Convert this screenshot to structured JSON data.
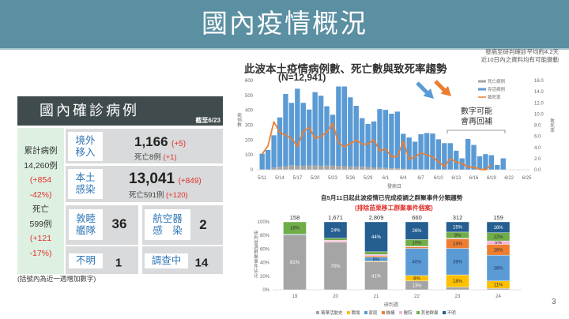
{
  "header": {
    "title": "國內疫情概況"
  },
  "summary_panel": {
    "title": "國內確診病例",
    "as_of": "截至6/23",
    "cumulative": {
      "label": "累計病例",
      "value": "14,260例",
      "change_line1": "(+854",
      "change_line2": "-42%)",
      "death_label": "死亡",
      "death_value": "599例",
      "death_change_line1": "(+121",
      "death_change_line2": "-17%)"
    },
    "imported": {
      "label_line1": "境外",
      "label_line2": "移入",
      "value": "1,166",
      "change": "(+5)",
      "death_text": "死亡8例",
      "death_change": "(+1)"
    },
    "local": {
      "label_line1": "本土",
      "label_line2": "感染",
      "value": "13,041",
      "change": "(+849)",
      "death_text": "死亡591例",
      "death_change": "(+120)"
    },
    "fleet": {
      "label_line1": "敦睦",
      "label_line2": "艦隊",
      "value": "36"
    },
    "aircraft": {
      "label_line1": "航空器",
      "label_line2": "感　染",
      "value": "2"
    },
    "unknown": {
      "label": "不明",
      "value": "1"
    },
    "investigating": {
      "label": "調查中",
      "value": "14"
    },
    "footnote": "(括號內為近一週增加數字)"
  },
  "trend_chart": {
    "note_line1": "發病至研判確診平均約4.2天",
    "note_line2": "近10日內之資料均有可能變動",
    "annotation_line1": "數字可能",
    "annotation_line2": "會再回補",
    "colors": {
      "arrow_blue": "#5b9bd5",
      "arrow_orange": "#ed7d31"
    }
  },
  "page_number": "3",
  "chart_data": [
    {
      "type": "bar",
      "title": "此波本土疫情病例數、死亡數與致死率趨勢",
      "subtitle": "(N=12,941)",
      "xlabel": "發病日",
      "ylabel": "病例數",
      "y2label": "致死率",
      "ylim": [
        0,
        600
      ],
      "y2lim": [
        0,
        16
      ],
      "yticks": [
        "0",
        "100",
        "200",
        "300",
        "400",
        "500",
        "600"
      ],
      "y2ticks": [
        "0.0",
        "2.0",
        "4.0",
        "6.0",
        "8.0",
        "10.0",
        "12.0",
        "14.0",
        "16.0"
      ],
      "xticks": [
        "5/11",
        "5/14",
        "5/17",
        "5/20",
        "5/23",
        "5/26",
        "5/29",
        "6/1",
        "6/4",
        "6/7",
        "6/10",
        "6/13",
        "6/16",
        "6/19",
        "6/22",
        "6/25"
      ],
      "xtick_step": 3,
      "categories": [
        "5/11",
        "5/12",
        "5/13",
        "5/14",
        "5/15",
        "5/16",
        "5/17",
        "5/18",
        "5/19",
        "5/20",
        "5/21",
        "5/22",
        "5/23",
        "5/24",
        "5/25",
        "5/26",
        "5/27",
        "5/28",
        "5/29",
        "5/30",
        "5/31",
        "6/1",
        "6/2",
        "6/3",
        "6/4",
        "6/5",
        "6/6",
        "6/7",
        "6/8",
        "6/9",
        "6/10",
        "6/11",
        "6/12",
        "6/13",
        "6/14",
        "6/15",
        "6/16",
        "6/17",
        "6/18",
        "6/19",
        "6/20",
        "6/21"
      ],
      "series": [
        {
          "name": "死亡病例",
          "type": "bar",
          "stack": "cases",
          "color": "#a5a5a5",
          "values": [
            2,
            3,
            15,
            20,
            24,
            30,
            26,
            27,
            28,
            28,
            27,
            28,
            27,
            26,
            24,
            22,
            20,
            20,
            18,
            16,
            14,
            12,
            10,
            10,
            6,
            4,
            3,
            3,
            2,
            2,
            1,
            1,
            1,
            1,
            0,
            0,
            0,
            0,
            0,
            0,
            0,
            0
          ]
        },
        {
          "name": "存活病例",
          "type": "bar",
          "stack": "cases",
          "color": "#5b9bd5",
          "values": [
            106,
            130,
            217,
            332,
            486,
            420,
            519,
            423,
            377,
            494,
            471,
            399,
            343,
            534,
            536,
            465,
            410,
            327,
            290,
            309,
            394,
            391,
            367,
            381,
            236,
            213,
            186,
            236,
            245,
            242,
            204,
            178,
            178,
            127,
            77,
            207,
            167,
            91,
            105,
            98,
            32,
            77
          ]
        },
        {
          "name": "致死率",
          "type": "line",
          "axis": "right",
          "color": "#ed7d31",
          "values": [
            2.8,
            4.3,
            8.6,
            6.7,
            6.2,
            5.6,
            4.2,
            6.8,
            7.6,
            5.6,
            6.0,
            6.7,
            8.3,
            4.8,
            4.1,
            4.7,
            5.3,
            4.6,
            4.6,
            5.4,
            3.4,
            3.7,
            2.3,
            2.4,
            5.1,
            1.9,
            2.3,
            3.0,
            2.7,
            2.3,
            1.4,
            0.6,
            2.0,
            1.4,
            1.1,
            0.5,
            0.5,
            0.1,
            0.0,
            0.9,
            null,
            null
          ]
        }
      ],
      "legend_position": "top-right",
      "grid": false
    },
    {
      "type": "bar",
      "stacked": true,
      "percent": true,
      "title": "自5月11日起此波疫情已完成疫調之群聚事件分類趨勢",
      "subtitle": "(排除苗栗移工群聚事件個案)",
      "xlabel": "研判週",
      "ylabel": "研判當週群聚事件佔比",
      "ylim": [
        0,
        100
      ],
      "yticks": [
        "0%",
        "20%",
        "40%",
        "60%",
        "80%",
        "100%"
      ],
      "categories": [
        "19",
        "20",
        "21",
        "22",
        "23",
        "24"
      ],
      "totals": [
        "158",
        "1,671",
        "2,809",
        "660",
        "312",
        "159"
      ],
      "series": [
        {
          "name": "萬華活動史",
          "color": "#a5a5a5",
          "label_color": "#ffffff",
          "values": [
            81,
            70,
            41,
            13,
            4,
            2
          ]
        },
        {
          "name": "職場",
          "color": "#ffc000",
          "label_color": "#333333",
          "values": [
            0,
            0,
            1,
            8,
            18,
            11
          ]
        },
        {
          "name": "家庭",
          "color": "#5b9bd5",
          "label_color": "#1f3864",
          "values": [
            1,
            0,
            6,
            40,
            39,
            38
          ]
        },
        {
          "name": "機構",
          "color": "#ed7d31",
          "label_color": "#333333",
          "values": [
            0,
            1,
            2,
            2,
            14,
            16
          ]
        },
        {
          "name": "醫院",
          "color": "#f4b6de",
          "label_color": "#333333",
          "values": [
            0,
            2,
            2,
            1,
            1,
            5
          ]
        },
        {
          "name": "其他群聚",
          "color": "#70ad47",
          "label_color": "#333333",
          "values": [
            18,
            3,
            4,
            10,
            9,
            12
          ]
        },
        {
          "name": "不明",
          "color": "#255e91",
          "label_color": "#ffffff",
          "values": [
            0,
            24,
            44,
            26,
            15,
            16
          ]
        }
      ],
      "label_threshold": 5,
      "legend_position": "bottom"
    }
  ]
}
